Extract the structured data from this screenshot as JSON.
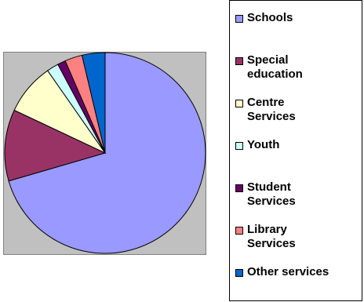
{
  "chart_data": {
    "type": "pie",
    "categories": [
      "Schools",
      "Special education",
      "Centre Services",
      "Youth",
      "Student Services",
      "Library Services",
      "Other services"
    ],
    "values": [
      70.5,
      11.5,
      8.3,
      1.9,
      1.3,
      2.8,
      3.7
    ],
    "colors": [
      "#9999ff",
      "#993366",
      "#ffffcc",
      "#ccffff",
      "#660066",
      "#ff8080",
      "#0066cc"
    ],
    "legend_labels": [
      [
        "Schools"
      ],
      [
        "Special",
        "education"
      ],
      [
        "Centre",
        "Services"
      ],
      [
        "Youth"
      ],
      [
        "Student",
        "Services"
      ],
      [
        "Library",
        "Services"
      ],
      [
        "Other services"
      ]
    ],
    "legend_placement": "right",
    "plot_area_fill": "#c0c0c0",
    "start_angle": "top",
    "direction": "clockwise"
  }
}
